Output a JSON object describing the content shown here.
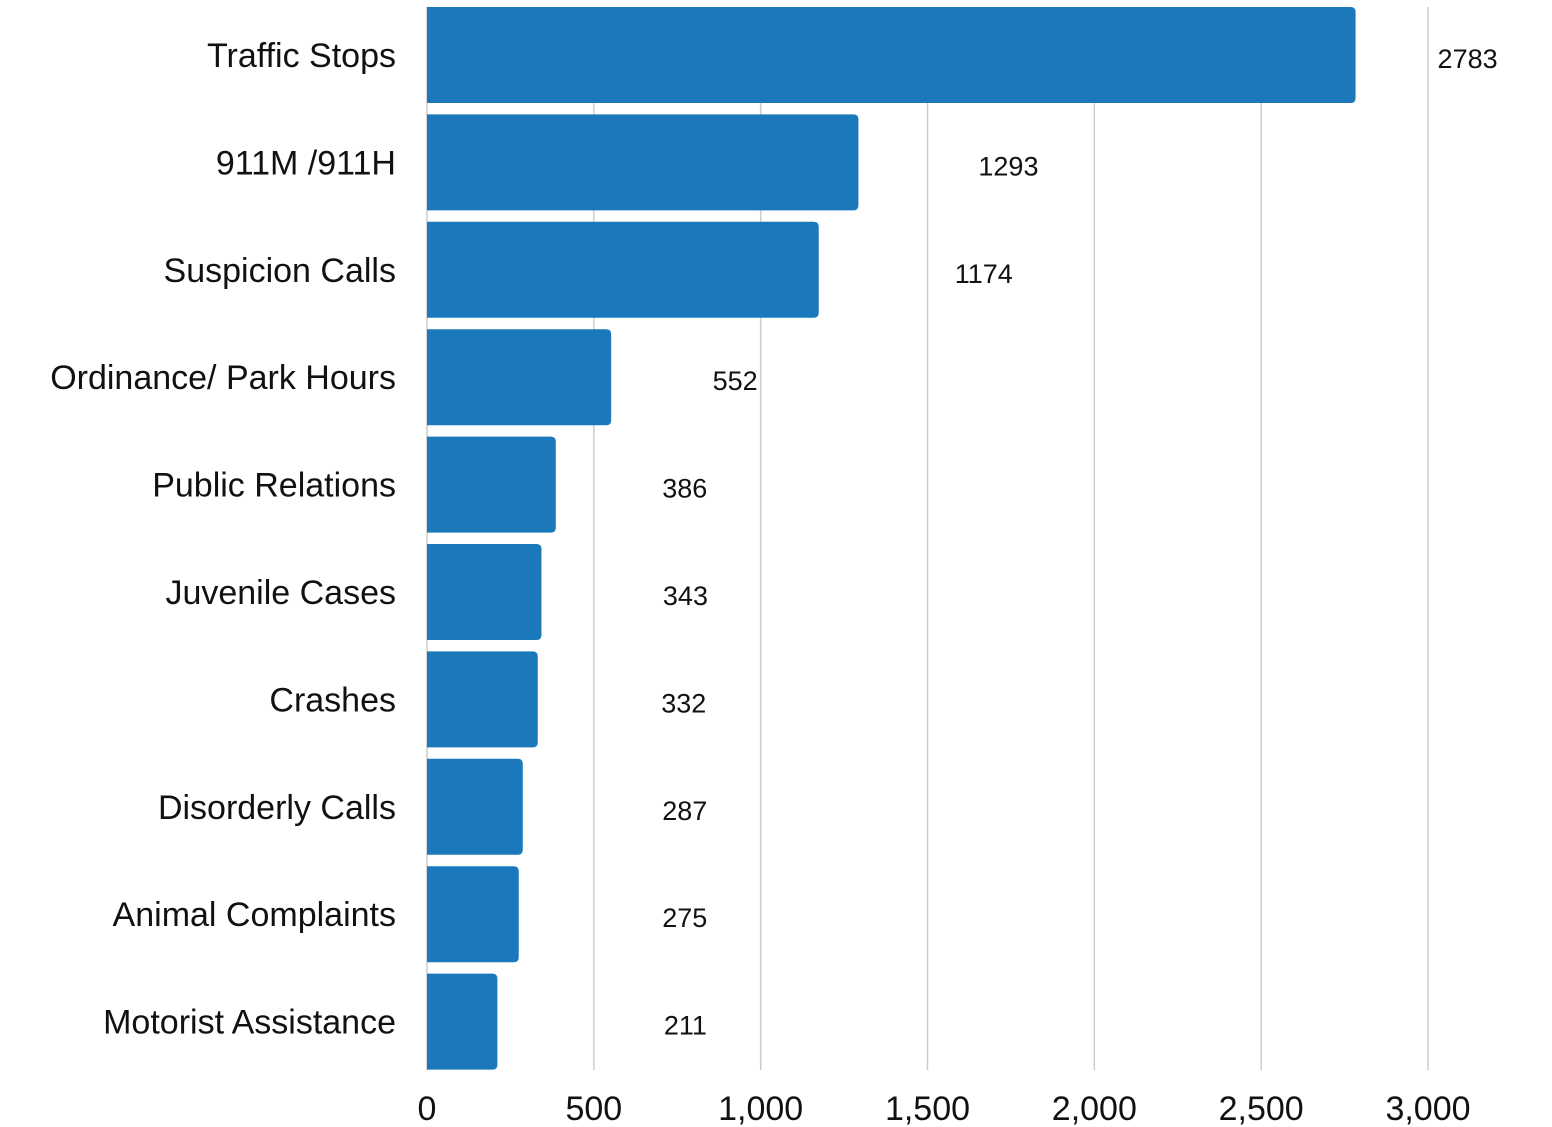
{
  "chart_data": {
    "type": "bar",
    "orientation": "horizontal",
    "categories": [
      "Traffic Stops",
      "911M /911H",
      "Suspicion Calls",
      "Ordinance/ Park Hours",
      "Public Relations",
      "Juvenile Cases",
      "Crashes",
      "Disorderly Calls",
      "Animal Complaints",
      "Motorist Assistance"
    ],
    "values": [
      2783,
      1293,
      1174,
      552,
      386,
      343,
      332,
      287,
      275,
      211
    ],
    "value_labels": [
      "2783",
      "1293",
      "1174",
      "552",
      "386",
      "343",
      "332",
      "287",
      "275",
      "211"
    ],
    "xlim": [
      0,
      3000
    ],
    "x_ticks": [
      0,
      500,
      1000,
      1500,
      2000,
      2500,
      3000
    ],
    "x_tick_labels": [
      "0",
      "500",
      "1,000",
      "1,500",
      "2,000",
      "2,500",
      "3,000"
    ],
    "grid": "vertical",
    "bar_color": "#1b79bb",
    "grid_color": "#cccccc"
  }
}
